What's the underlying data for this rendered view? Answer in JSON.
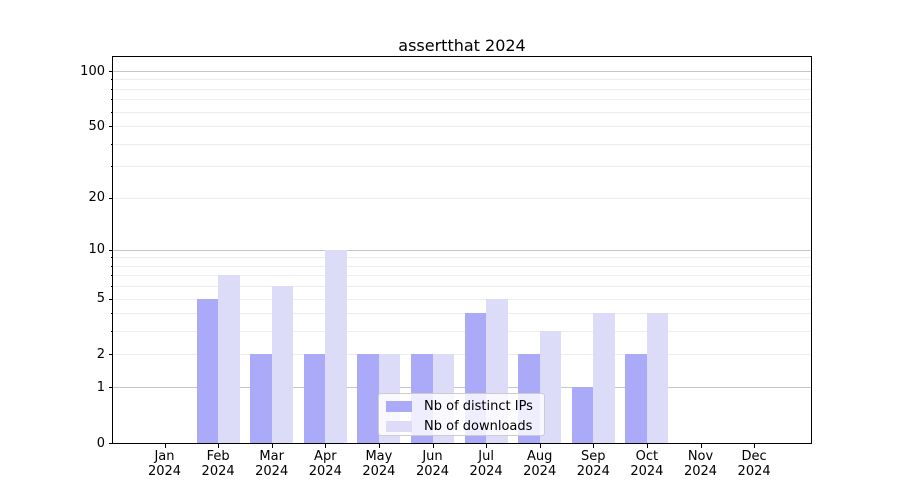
{
  "chart_data": {
    "type": "bar",
    "title": "assertthat 2024",
    "categories": [
      "Jan 2024",
      "Feb 2024",
      "Mar 2024",
      "Apr 2024",
      "May 2024",
      "Jun 2024",
      "Jul 2024",
      "Aug 2024",
      "Sep 2024",
      "Oct 2024",
      "Nov 2024",
      "Dec 2024"
    ],
    "series": [
      {
        "name": "Nb of distinct IPs",
        "color": "#aaaaf8",
        "values": [
          0,
          5,
          2,
          2,
          2,
          2,
          4,
          2,
          1,
          2,
          0,
          0
        ]
      },
      {
        "name": "Nb of downloads",
        "color": "#dcdcf8",
        "values": [
          0,
          7,
          6,
          10,
          2,
          2,
          5,
          3,
          4,
          4,
          0,
          0
        ]
      }
    ],
    "y_axis": {
      "scale": "log10(1+v)",
      "ticks": [
        0,
        1,
        2,
        5,
        10,
        20,
        50,
        100
      ],
      "range": [
        0,
        100
      ]
    },
    "grid": {
      "major_at": [
        1,
        10,
        100
      ],
      "minor_at": [
        2,
        3,
        4,
        5,
        6,
        7,
        8,
        9,
        20,
        30,
        40,
        50,
        60,
        70,
        80,
        90
      ]
    },
    "legend_position": "lower center",
    "xlabel": "",
    "ylabel": ""
  }
}
